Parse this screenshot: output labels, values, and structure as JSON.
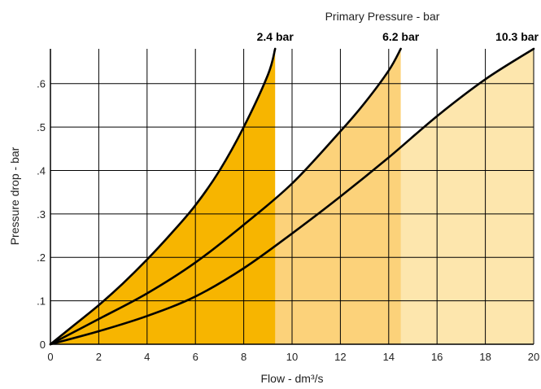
{
  "chart_data": {
    "type": "area",
    "title": "Primary Pressure - bar",
    "xlabel": "Flow - dm³/s",
    "ylabel": "Pressure drop - bar",
    "xlim": [
      0,
      20
    ],
    "ylim": [
      0,
      0.68
    ],
    "x_ticks": [
      0,
      2,
      4,
      6,
      8,
      10,
      12,
      14,
      16,
      18,
      20
    ],
    "x_tick_labels": [
      "0",
      "2",
      "4",
      "6",
      "8",
      "10",
      "12",
      "14",
      "16",
      "18",
      "20"
    ],
    "y_ticks": [
      0,
      0.1,
      0.2,
      0.3,
      0.4,
      0.5,
      0.6
    ],
    "y_tick_labels": [
      "0",
      ".1",
      ".2",
      ".3",
      ".4",
      ".5",
      ".6"
    ],
    "grid": true,
    "series": [
      {
        "name": "2.4 bar",
        "color": "#f7b500",
        "x": [
          0,
          1,
          2,
          3,
          4,
          5,
          6,
          7,
          8,
          9,
          9.3
        ],
        "y": [
          0,
          0.045,
          0.09,
          0.14,
          0.195,
          0.255,
          0.32,
          0.4,
          0.5,
          0.62,
          0.68
        ]
      },
      {
        "name": "6.2 bar",
        "color": "#fcd27a",
        "x": [
          0,
          2,
          4,
          6,
          8,
          10,
          12,
          13,
          14,
          14.5
        ],
        "y": [
          0,
          0.058,
          0.117,
          0.188,
          0.275,
          0.37,
          0.49,
          0.555,
          0.63,
          0.68
        ]
      },
      {
        "name": "10.3 bar",
        "color": "#fde6ad",
        "x": [
          0,
          2,
          4,
          6,
          8,
          10,
          12,
          14,
          16,
          18,
          20
        ],
        "y": [
          0,
          0.03,
          0.065,
          0.11,
          0.175,
          0.255,
          0.34,
          0.43,
          0.525,
          0.61,
          0.68
        ]
      }
    ]
  }
}
